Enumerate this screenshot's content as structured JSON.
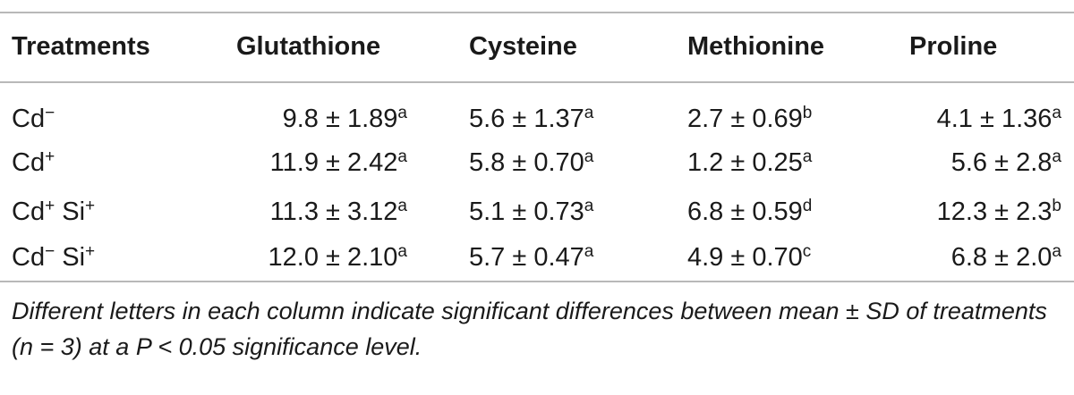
{
  "headers": [
    "Treatments",
    "Glutathione",
    "Cysteine",
    "Methionine",
    "Proline"
  ],
  "rows": [
    {
      "treatment": {
        "base": "Cd",
        "sup": "−",
        "extra": "",
        "extra_sup": ""
      },
      "cells": [
        {
          "value": "9.8 ± 1.89",
          "letter": "a"
        },
        {
          "value": "5.6 ± 1.37",
          "letter": "a"
        },
        {
          "value": "2.7 ± 0.69",
          "letter": "b"
        },
        {
          "value": "4.1 ± 1.36",
          "letter": "a"
        }
      ]
    },
    {
      "treatment": {
        "base": "Cd",
        "sup": "+",
        "extra": "",
        "extra_sup": ""
      },
      "cells": [
        {
          "value": "11.9 ± 2.42",
          "letter": "a"
        },
        {
          "value": "5.8 ± 0.70",
          "letter": "a"
        },
        {
          "value": "1.2 ± 0.25",
          "letter": "a"
        },
        {
          "value": "5.6 ± 2.8",
          "letter": "a"
        }
      ]
    },
    {
      "treatment": {
        "base": "Cd",
        "sup": "+",
        "extra": " Si",
        "extra_sup": "+"
      },
      "cells": [
        {
          "value": "11.3 ± 3.12",
          "letter": "a"
        },
        {
          "value": "5.1 ± 0.73",
          "letter": "a"
        },
        {
          "value": "6.8 ± 0.59",
          "letter": "d"
        },
        {
          "value": "12.3 ± 2.3",
          "letter": "b"
        }
      ]
    },
    {
      "treatment": {
        "base": "Cd",
        "sup": "−",
        "extra": " Si",
        "extra_sup": "+"
      },
      "cells": [
        {
          "value": "12.0 ± 2.10",
          "letter": "a"
        },
        {
          "value": "5.7 ± 0.47",
          "letter": "a"
        },
        {
          "value": "4.9 ± 0.70",
          "letter": "c"
        },
        {
          "value": "6.8 ± 2.0",
          "letter": "a"
        }
      ]
    }
  ],
  "footnote": "Different letters in each column indicate significant differences between mean ± SD of treatments (n = 3) at a P < 0.05 significance level."
}
